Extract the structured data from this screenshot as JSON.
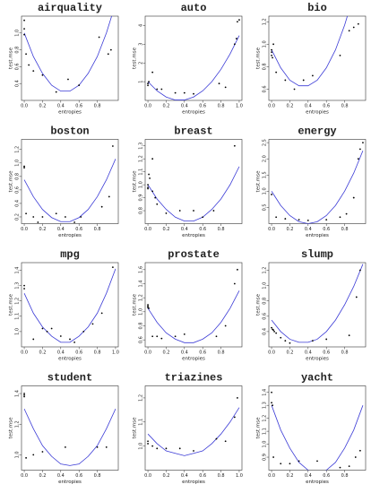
{
  "chart_data": [
    {
      "type": "scatter",
      "title": "airquality",
      "xlabel": "entropies",
      "ylabel": "test.mse",
      "xlim": [
        -0.03,
        1.03
      ],
      "ylim": [
        0.2,
        1.2
      ],
      "xticks": [
        {
          "value": 0,
          "label": "0.0"
        },
        0.2,
        0.4,
        0.6,
        0.8
      ],
      "yticks": [
        0.4,
        0.6,
        0.8,
        {
          "value": 1,
          "label": "1.0"
        }
      ],
      "point_color": "#000000",
      "curve_color": "#3b3bd6",
      "x": [
        0,
        0,
        0,
        0.02,
        0.05,
        0.1,
        0.2,
        0.35,
        0.48,
        0.6,
        0.82,
        0.92,
        0.95
      ],
      "values": [
        1.15,
        1.05,
        0.98,
        0.75,
        0.62,
        0.55,
        0.5,
        0.3,
        0.45,
        0.38,
        0.95,
        0.75,
        0.8
      ],
      "fit_x": [
        0,
        0.1,
        0.2,
        0.3,
        0.4,
        0.5,
        0.6,
        0.7,
        0.8,
        0.9,
        1
      ],
      "fit_values": [
        1.0,
        0.72,
        0.52,
        0.38,
        0.31,
        0.31,
        0.38,
        0.52,
        0.72,
        1.0,
        1.35
      ]
    },
    {
      "type": "scatter",
      "title": "auto",
      "xlabel": "entropies",
      "ylabel": "test.mse",
      "xlim": [
        -0.03,
        1.03
      ],
      "ylim": [
        0,
        4.5
      ],
      "xticks": [
        {
          "value": 0,
          "label": "0.0"
        },
        0.2,
        0.4,
        0.6,
        0.8,
        {
          "value": 1,
          "label": "1.0"
        }
      ],
      "yticks": [
        1,
        2,
        3,
        4
      ],
      "point_color": "#000000",
      "curve_color": "#3b3bd6",
      "x": [
        0,
        0,
        0.01,
        0.05,
        0.1,
        0.15,
        0.3,
        0.4,
        0.5,
        0.78,
        0.85,
        0.95,
        0.97,
        0.98,
        1.0
      ],
      "values": [
        0.9,
        0.8,
        1.0,
        1.5,
        0.6,
        0.6,
        0.4,
        0.4,
        0.35,
        0.9,
        0.7,
        3.0,
        3.3,
        4.2,
        4.3
      ],
      "fit_x": [
        0,
        0.1,
        0.2,
        0.3,
        0.4,
        0.5,
        0.6,
        0.7,
        0.8,
        0.9,
        1
      ],
      "fit_values": [
        1.0,
        0.51,
        0.18,
        0.02,
        0.02,
        0.18,
        0.51,
        1.0,
        1.66,
        2.48,
        3.46
      ]
    },
    {
      "type": "scatter",
      "title": "bio",
      "xlabel": "entropies",
      "ylabel": "test.mse",
      "xlim": [
        -0.03,
        1.03
      ],
      "ylim": [
        0.5,
        1.25
      ],
      "xticks": [
        {
          "value": 0,
          "label": "0.0"
        },
        0.2,
        0.4,
        0.6,
        0.8
      ],
      "yticks": [
        0.6,
        0.8,
        {
          "value": 1,
          "label": "1.0"
        },
        1.2
      ],
      "point_color": "#000000",
      "curve_color": "#3b3bd6",
      "x": [
        0,
        0,
        0,
        0.01,
        0.02,
        0.05,
        0.15,
        0.25,
        0.35,
        0.45,
        0.75,
        0.85,
        0.9,
        0.95
      ],
      "values": [
        0.95,
        0.93,
        0.9,
        0.88,
        1.0,
        0.75,
        0.68,
        0.6,
        0.68,
        0.72,
        0.9,
        1.12,
        1.15,
        1.18
      ],
      "fit_x": [
        0,
        0.1,
        0.2,
        0.3,
        0.4,
        0.5,
        0.6,
        0.7,
        0.8,
        0.9,
        1
      ],
      "fit_values": [
        0.95,
        0.79,
        0.68,
        0.63,
        0.63,
        0.68,
        0.79,
        0.95,
        1.17,
        1.44,
        1.76
      ]
    },
    {
      "type": "scatter",
      "title": "boston",
      "xlabel": "entropies",
      "ylabel": "test.mse",
      "xlim": [
        -0.03,
        1.03
      ],
      "ylim": [
        0.1,
        1.35
      ],
      "xticks": [
        {
          "value": 0,
          "label": "0.0"
        },
        0.2,
        0.4,
        0.6,
        0.8
      ],
      "yticks": [
        0.2,
        0.4,
        0.6,
        0.8,
        {
          "value": 1,
          "label": "1.0"
        },
        1.2
      ],
      "point_color": "#000000",
      "curve_color": "#3b3bd6",
      "x": [
        0,
        0,
        0.02,
        0.1,
        0.15,
        0.2,
        0.35,
        0.45,
        0.55,
        0.62,
        0.85,
        0.93,
        0.97
      ],
      "values": [
        0.95,
        0.93,
        0.25,
        0.2,
        0.12,
        0.2,
        0.25,
        0.2,
        0.12,
        0.2,
        0.35,
        0.5,
        1.25
      ],
      "fit_x": [
        0,
        0.1,
        0.2,
        0.3,
        0.4,
        0.5,
        0.6,
        0.7,
        0.8,
        0.9,
        1
      ],
      "fit_values": [
        0.75,
        0.5,
        0.31,
        0.19,
        0.13,
        0.13,
        0.19,
        0.31,
        0.5,
        0.75,
        1.06
      ]
    },
    {
      "type": "scatter",
      "title": "breast",
      "xlabel": "entropies",
      "ylabel": "test.mse",
      "xlim": [
        -0.03,
        1.03
      ],
      "ylim": [
        0.7,
        1.35
      ],
      "xticks": [
        {
          "value": 0,
          "label": "0.0"
        },
        0.2,
        0.4,
        0.6,
        0.8
      ],
      "yticks": [
        0.8,
        0.9,
        {
          "value": 1,
          "label": "1.0"
        },
        1.1,
        1.2,
        1.3
      ],
      "point_color": "#000000",
      "curve_color": "#3b3bd6",
      "x": [
        0,
        0,
        0,
        0.01,
        0.02,
        0.05,
        0.08,
        0.1,
        0.05,
        0.2,
        0.35,
        0.5,
        0.6,
        0.72,
        0.95
      ],
      "values": [
        1.0,
        0.98,
        0.97,
        1.08,
        1.05,
        0.95,
        0.9,
        0.85,
        1.2,
        0.78,
        0.8,
        0.8,
        0.75,
        0.8,
        1.3
      ],
      "fit_x": [
        0,
        0.1,
        0.2,
        0.3,
        0.4,
        0.5,
        0.6,
        0.7,
        0.8,
        0.9,
        1
      ],
      "fit_values": [
        1.0,
        0.89,
        0.81,
        0.75,
        0.72,
        0.72,
        0.75,
        0.81,
        0.89,
        1.0,
        1.14
      ]
    },
    {
      "type": "scatter",
      "title": "energy",
      "xlabel": "entropies",
      "ylabel": "test.mse",
      "xlim": [
        -0.03,
        1.03
      ],
      "ylim": [
        0,
        2.6
      ],
      "xticks": [
        {
          "value": 0,
          "label": "0.0"
        },
        0.2,
        0.4,
        0.6,
        0.8
      ],
      "yticks": [
        0.5,
        {
          "value": 1,
          "label": "1.0"
        },
        1.5,
        {
          "value": 2,
          "label": "2.0"
        },
        2.5
      ],
      "point_color": "#000000",
      "curve_color": "#3b3bd6",
      "x": [
        0,
        0.05,
        0.15,
        0.3,
        0.4,
        0.6,
        0.75,
        0.82,
        0.9,
        0.95,
        0.97,
        1.0
      ],
      "values": [
        0.9,
        0.2,
        0.15,
        0.12,
        0.1,
        0.12,
        0.2,
        0.3,
        0.8,
        2.0,
        2.3,
        2.5
      ],
      "fit_x": [
        0,
        0.1,
        0.2,
        0.3,
        0.4,
        0.5,
        0.6,
        0.7,
        0.8,
        0.9,
        1
      ],
      "fit_values": [
        1.0,
        0.56,
        0.25,
        0.06,
        0,
        0.06,
        0.25,
        0.56,
        1.0,
        1.56,
        2.25
      ]
    },
    {
      "type": "scatter",
      "title": "mpg",
      "xlabel": "entropies",
      "ylabel": "test.mse",
      "xlim": [
        -0.03,
        1.03
      ],
      "ylim": [
        0.9,
        1.45
      ],
      "xticks": [
        {
          "value": 0,
          "label": "0.0"
        },
        0.2,
        0.4,
        0.6,
        0.8,
        {
          "value": 1,
          "label": "1.0"
        }
      ],
      "yticks": [
        {
          "value": 1,
          "label": "1.0"
        },
        1.1,
        1.2,
        1.3,
        1.4
      ],
      "point_color": "#000000",
      "curve_color": "#3b3bd6",
      "x": [
        0,
        0,
        0.1,
        0.2,
        0.25,
        0.3,
        0.4,
        0.5,
        0.55,
        0.65,
        0.75,
        0.85,
        0.97
      ],
      "values": [
        1.3,
        1.28,
        0.95,
        1.02,
        1.0,
        1.02,
        0.97,
        0.95,
        0.93,
        1.0,
        1.05,
        1.12,
        1.42
      ],
      "fit_x": [
        0,
        0.1,
        0.2,
        0.3,
        0.4,
        0.5,
        0.6,
        0.7,
        0.8,
        0.9,
        1
      ],
      "fit_values": [
        1.25,
        1.12,
        1.03,
        0.97,
        0.93,
        0.93,
        0.97,
        1.03,
        1.12,
        1.25,
        1.41
      ]
    },
    {
      "type": "scatter",
      "title": "prostate",
      "xlabel": "entropies",
      "ylabel": "test.mse",
      "xlim": [
        -0.03,
        1.03
      ],
      "ylim": [
        0.5,
        1.7
      ],
      "xticks": [
        {
          "value": 0,
          "label": "0.0"
        },
        0.2,
        0.4,
        0.6,
        0.8
      ],
      "yticks": [
        0.6,
        0.8,
        {
          "value": 1,
          "label": "1.0"
        },
        1.2,
        1.4,
        1.6
      ],
      "point_color": "#000000",
      "curve_color": "#3b3bd6",
      "x": [
        0,
        0,
        0,
        0.01,
        0.05,
        0.1,
        0.15,
        0.3,
        0.4,
        0.75,
        0.85,
        0.95,
        0.98
      ],
      "values": [
        1.1,
        1.08,
        1.06,
        1.05,
        0.65,
        0.65,
        0.62,
        0.65,
        0.68,
        0.65,
        0.8,
        1.4,
        1.6
      ],
      "fit_x": [
        0,
        0.1,
        0.2,
        0.3,
        0.4,
        0.5,
        0.6,
        0.7,
        0.8,
        0.9,
        1
      ],
      "fit_values": [
        1.05,
        0.85,
        0.7,
        0.61,
        0.56,
        0.56,
        0.61,
        0.7,
        0.85,
        1.05,
        1.3
      ]
    },
    {
      "type": "scatter",
      "title": "slump",
      "xlabel": "entropies",
      "ylabel": "test.mse",
      "xlim": [
        -0.03,
        1.03
      ],
      "ylim": [
        0.2,
        1.3
      ],
      "xticks": [
        {
          "value": 0,
          "label": "0.0"
        },
        0.2,
        0.4,
        0.6,
        0.8
      ],
      "yticks": [
        0.4,
        0.6,
        0.8,
        {
          "value": 1,
          "label": "1.0"
        },
        1.2
      ],
      "point_color": "#000000",
      "curve_color": "#3b3bd6",
      "x": [
        0,
        0.01,
        0.02,
        0.03,
        0.05,
        0.1,
        0.15,
        0.2,
        0.45,
        0.6,
        0.85,
        0.93,
        0.97
      ],
      "values": [
        0.45,
        0.43,
        0.42,
        0.4,
        0.38,
        0.32,
        0.28,
        0.25,
        0.28,
        0.3,
        0.35,
        0.85,
        1.2
      ],
      "fit_x": [
        0,
        0.1,
        0.2,
        0.3,
        0.4,
        0.5,
        0.6,
        0.7,
        0.8,
        0.9,
        1
      ],
      "fit_values": [
        0.55,
        0.4,
        0.3,
        0.26,
        0.26,
        0.3,
        0.4,
        0.55,
        0.75,
        0.99,
        1.28
      ]
    },
    {
      "type": "scatter",
      "title": "student",
      "xlabel": "entropies",
      "ylabel": "test.mse",
      "xlim": [
        -0.03,
        1.03
      ],
      "ylim": [
        0.9,
        1.45
      ],
      "xticks": [
        {
          "value": 0,
          "label": "0.0"
        },
        0.2,
        0.4,
        0.6,
        0.8
      ],
      "yticks": [
        {
          "value": 1,
          "label": "1.0"
        },
        1.2,
        1.4
      ],
      "point_color": "#000000",
      "curve_color": "#3b3bd6",
      "x": [
        0,
        0,
        0,
        0.02,
        0.1,
        0.2,
        0.45,
        0.8,
        0.9
      ],
      "values": [
        1.4,
        1.39,
        1.38,
        0.98,
        1.0,
        1.02,
        1.05,
        1.05,
        1.05
      ],
      "fit_x": [
        0,
        0.1,
        0.2,
        0.3,
        0.4,
        0.5,
        0.6,
        0.7,
        0.8,
        0.9,
        1
      ],
      "fit_values": [
        1.3,
        1.17,
        1.06,
        0.99,
        0.94,
        0.93,
        0.94,
        0.99,
        1.06,
        1.17,
        1.3
      ]
    },
    {
      "type": "scatter",
      "title": "triazines",
      "xlabel": "entropies",
      "ylabel": "test.mse",
      "xlim": [
        -0.03,
        1.03
      ],
      "ylim": [
        0.9,
        1.25
      ],
      "xticks": [
        {
          "value": 0,
          "label": "0.0"
        },
        0.2,
        0.4,
        0.6,
        0.8,
        {
          "value": 1,
          "label": "1.0"
        }
      ],
      "yticks": [
        {
          "value": 1,
          "label": "1.0"
        },
        1.1,
        1.2
      ],
      "point_color": "#000000",
      "curve_color": "#3b3bd6",
      "x": [
        0,
        0,
        0.05,
        0.1,
        0.2,
        0.35,
        0.5,
        0.75,
        0.85,
        0.95,
        0.98
      ],
      "values": [
        1.02,
        1.01,
        1.0,
        0.99,
        0.99,
        0.99,
        0.98,
        1.03,
        1.02,
        1.12,
        1.2
      ],
      "fit_x": [
        0,
        0.1,
        0.2,
        0.3,
        0.4,
        0.5,
        0.6,
        0.7,
        0.8,
        0.9,
        1
      ],
      "fit_values": [
        1.05,
        1.01,
        0.98,
        0.97,
        0.96,
        0.97,
        0.98,
        1.01,
        1.05,
        1.1,
        1.16
      ]
    },
    {
      "type": "scatter",
      "title": "yacht",
      "xlabel": "entropies",
      "ylabel": "test.mse",
      "xlim": [
        -0.03,
        1.03
      ],
      "ylim": [
        0.8,
        1.45
      ],
      "xticks": [
        {
          "value": 0,
          "label": "0.0"
        },
        0.2,
        0.4,
        0.6,
        0.8
      ],
      "yticks": [
        0.9,
        {
          "value": 1,
          "label": "1.0"
        },
        1.1,
        1.2,
        1.3,
        1.4
      ],
      "point_color": "#000000",
      "curve_color": "#3b3bd6",
      "x": [
        0,
        0,
        0.01,
        0.02,
        0.1,
        0.2,
        0.3,
        0.5,
        0.75,
        0.85,
        0.92,
        0.97
      ],
      "values": [
        1.4,
        1.32,
        1.3,
        0.9,
        0.85,
        0.85,
        0.87,
        0.87,
        0.82,
        0.83,
        0.9,
        0.95
      ],
      "fit_x": [
        0,
        0.1,
        0.2,
        0.3,
        0.4,
        0.5,
        0.6,
        0.7,
        0.8,
        0.9,
        1
      ],
      "fit_values": [
        1.3,
        1.11,
        0.97,
        0.86,
        0.8,
        0.78,
        0.8,
        0.86,
        0.97,
        1.11,
        1.3
      ]
    }
  ]
}
